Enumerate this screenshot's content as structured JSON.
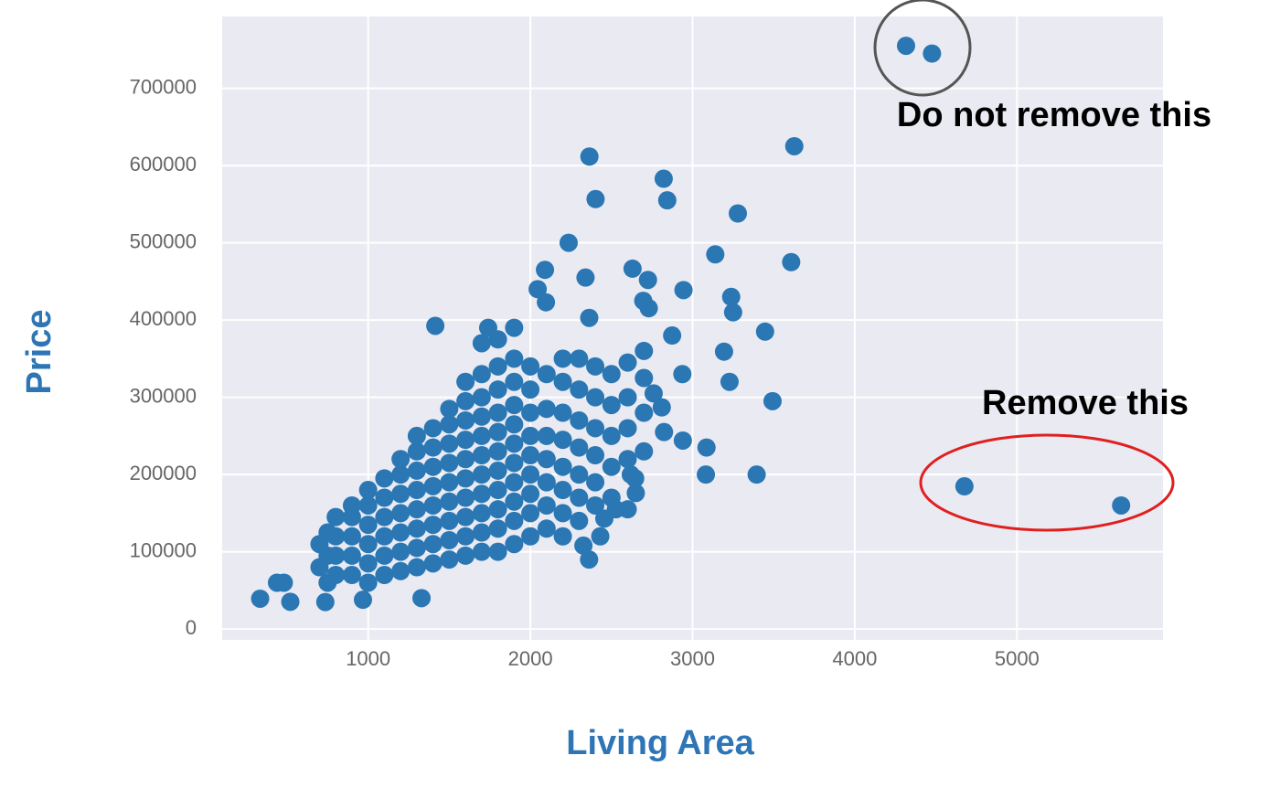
{
  "chart_data": {
    "type": "scatter",
    "x_label": "Living Area",
    "y_label": "Price",
    "annotations": [
      "Do not remove this",
      "Remove this"
    ],
    "color": "#2a77b4",
    "grid": true,
    "xlim": [
      100,
      5900
    ],
    "ylim": [
      -14000,
      793000
    ],
    "xticks": [
      1000,
      2000,
      3000,
      4000,
      5000
    ],
    "yticks": [
      0,
      100000,
      200000,
      300000,
      400000,
      500000,
      600000,
      700000
    ],
    "x": [
      4316,
      4476,
      4676,
      5642,
      3627,
      3608,
      2364,
      2822,
      2402,
      2844,
      3279,
      2236,
      3140,
      2090,
      2630,
      2725,
      2340,
      2944,
      3238,
      2696,
      2045,
      3250,
      2096,
      1414,
      1740,
      2730,
      2363,
      3447,
      3194,
      3228,
      3493,
      2940,
      3086,
      3082,
      3395,
      2646,
      2619,
      2527,
      2456,
      2327,
      2362,
      2431,
      2600,
      2650,
      2810,
      2824,
      2937,
      2874,
      2760,
      334,
      520,
      438,
      480,
      736,
      968,
      1329,
      700,
      700,
      750,
      750,
      750,
      800,
      800,
      800,
      800,
      900,
      900,
      900,
      900,
      900,
      1000,
      1000,
      1000,
      1000,
      1000,
      1000,
      1100,
      1100,
      1100,
      1100,
      1100,
      1100,
      1200,
      1200,
      1200,
      1200,
      1200,
      1200,
      1200,
      1300,
      1300,
      1300,
      1300,
      1300,
      1300,
      1300,
      1300,
      1400,
      1400,
      1400,
      1400,
      1400,
      1400,
      1400,
      1400,
      1500,
      1500,
      1500,
      1500,
      1500,
      1500,
      1500,
      1500,
      1500,
      1600,
      1600,
      1600,
      1600,
      1600,
      1600,
      1600,
      1600,
      1600,
      1600,
      1700,
      1700,
      1700,
      1700,
      1700,
      1700,
      1700,
      1700,
      1700,
      1700,
      1700,
      1800,
      1800,
      1800,
      1800,
      1800,
      1800,
      1800,
      1800,
      1800,
      1800,
      1800,
      1900,
      1900,
      1900,
      1900,
      1900,
      1900,
      1900,
      1900,
      1900,
      1900,
      1900,
      2000,
      2000,
      2000,
      2000,
      2000,
      2000,
      2000,
      2000,
      2000,
      2100,
      2100,
      2100,
      2100,
      2100,
      2100,
      2100,
      2200,
      2200,
      2200,
      2200,
      2200,
      2200,
      2200,
      2200,
      2300,
      2300,
      2300,
      2300,
      2300,
      2300,
      2300,
      2400,
      2400,
      2400,
      2400,
      2400,
      2400,
      2500,
      2500,
      2500,
      2500,
      2500,
      2600,
      2600,
      2600,
      2600,
      2700,
      2700,
      2700,
      2700
    ],
    "values": [
      755000,
      745000,
      184750,
      160000,
      625000,
      475000,
      611657,
      582933,
      556581,
      555000,
      538000,
      500000,
      485000,
      465000,
      466500,
      451950,
      455000,
      438780,
      430000,
      424870,
      440000,
      410000,
      423000,
      392500,
      390000,
      415298,
      402861,
      385000,
      359100,
      320000,
      295000,
      244000,
      235000,
      200000,
      200000,
      195000,
      200000,
      155000,
      143000,
      108000,
      90000,
      120000,
      155000,
      176000,
      287000,
      255000,
      330000,
      380000,
      305000,
      39300,
      35311,
      60000,
      60000,
      35000,
      37900,
      40000,
      80000,
      110000,
      60000,
      95000,
      125000,
      70000,
      95000,
      120000,
      145000,
      70000,
      95000,
      120000,
      145000,
      160000,
      60000,
      85000,
      110000,
      135000,
      160000,
      180000,
      70000,
      95000,
      120000,
      145000,
      170000,
      195000,
      75000,
      100000,
      125000,
      150000,
      175000,
      200000,
      220000,
      80000,
      105000,
      130000,
      155000,
      180000,
      205000,
      230000,
      250000,
      85000,
      110000,
      135000,
      160000,
      185000,
      210000,
      235000,
      260000,
      90000,
      115000,
      140000,
      165000,
      190000,
      215000,
      240000,
      265000,
      285000,
      95000,
      120000,
      145000,
      170000,
      195000,
      220000,
      245000,
      270000,
      295000,
      320000,
      100000,
      125000,
      150000,
      175000,
      200000,
      225000,
      250000,
      275000,
      300000,
      330000,
      370000,
      100000,
      130000,
      155000,
      180000,
      205000,
      230000,
      255000,
      280000,
      310000,
      340000,
      375000,
      110000,
      140000,
      165000,
      190000,
      215000,
      240000,
      265000,
      290000,
      320000,
      350000,
      390000,
      120000,
      150000,
      175000,
      200000,
      225000,
      250000,
      280000,
      310000,
      340000,
      130000,
      160000,
      190000,
      220000,
      250000,
      285000,
      330000,
      120000,
      150000,
      180000,
      210000,
      245000,
      280000,
      320000,
      350000,
      140000,
      170000,
      200000,
      235000,
      270000,
      310000,
      350000,
      160000,
      190000,
      225000,
      260000,
      300000,
      340000,
      170000,
      210000,
      250000,
      290000,
      330000,
      220000,
      260000,
      300000,
      345000,
      230000,
      280000,
      325000,
      360000
    ]
  }
}
